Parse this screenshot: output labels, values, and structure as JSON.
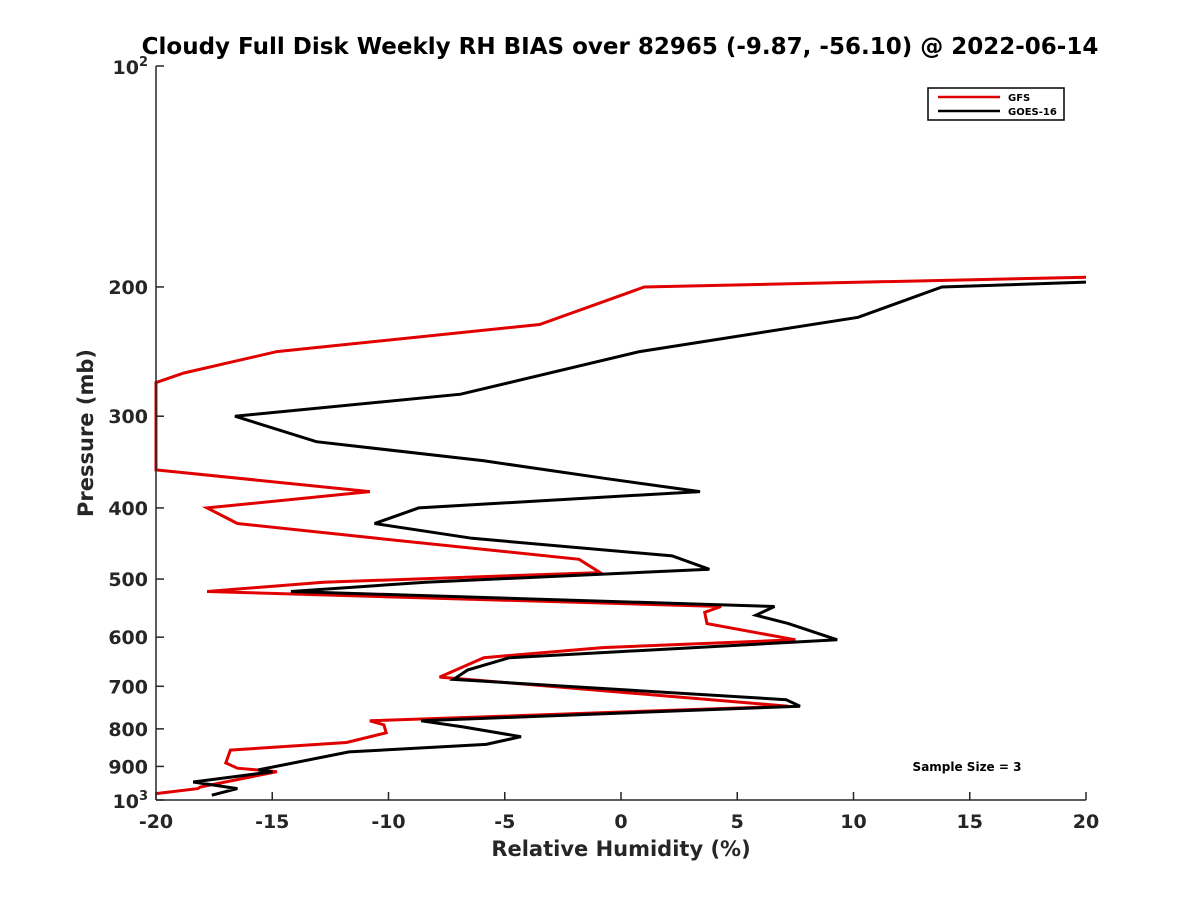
{
  "chart_data": {
    "type": "line",
    "title": "Cloudy Full Disk Weekly RH BIAS over 82965 (-9.87, -56.10) @ 2022-06-14",
    "xlabel": "Relative Humidity (%)",
    "ylabel": "Pressure (mb)",
    "xlim": [
      -20,
      20
    ],
    "ylim": [
      100,
      1000
    ],
    "yscale": "log",
    "y_reversed": true,
    "grid": false,
    "legend_position": "top-right",
    "x_ticks": [
      -20,
      -15,
      -10,
      -5,
      0,
      5,
      10,
      15,
      20
    ],
    "x_tick_labels": [
      "-20",
      "-15",
      "-10",
      "-5",
      "0",
      "5",
      "10",
      "15",
      "20"
    ],
    "y_ticks": [
      200,
      300,
      400,
      500,
      600,
      700,
      800,
      900
    ],
    "y_tick_labels": [
      "200",
      "300",
      "400",
      "500",
      "600",
      "700",
      "800",
      "900"
    ],
    "y_decade_labels": [
      {
        "base": "10",
        "exp": "2",
        "value": 100
      },
      {
        "base": "10",
        "exp": "3",
        "value": 1000
      }
    ],
    "annotation": "Sample Size = 3",
    "series": [
      {
        "name": "GFS",
        "color": "#e00000",
        "points": [
          [
            20.0,
            194
          ],
          [
            1.0,
            200
          ],
          [
            -3.5,
            225
          ],
          [
            -14.8,
            245
          ],
          [
            -18.8,
            262
          ],
          [
            -20.0,
            270
          ],
          [
            -20.0,
            355
          ],
          [
            -10.8,
            380
          ],
          [
            -17.8,
            400
          ],
          [
            -16.5,
            420
          ],
          [
            -10.5,
            440
          ],
          [
            -1.8,
            470
          ],
          [
            -0.9,
            490
          ],
          [
            -12.8,
            505
          ],
          [
            -17.8,
            520
          ],
          [
            4.3,
            545
          ],
          [
            3.6,
            555
          ],
          [
            3.7,
            575
          ],
          [
            7.5,
            605
          ],
          [
            -0.8,
            620
          ],
          [
            -5.9,
            640
          ],
          [
            -7.8,
            680
          ],
          [
            7.2,
            745
          ],
          [
            -10.8,
            780
          ],
          [
            -10.2,
            790
          ],
          [
            -10.1,
            810
          ],
          [
            -11.8,
            835
          ],
          [
            -16.8,
            855
          ],
          [
            -17.0,
            890
          ],
          [
            -16.5,
            905
          ],
          [
            -14.8,
            915
          ],
          [
            -18.1,
            960
          ],
          [
            -18.2,
            965
          ],
          [
            -20.0,
            980
          ]
        ]
      },
      {
        "name": "GOES-16",
        "color": "#000000",
        "points": [
          [
            20.0,
            197
          ],
          [
            13.8,
            200
          ],
          [
            10.2,
            220
          ],
          [
            0.8,
            245
          ],
          [
            -6.9,
            280
          ],
          [
            -16.6,
            300
          ],
          [
            -13.1,
            325
          ],
          [
            -5.9,
            345
          ],
          [
            -0.6,
            365
          ],
          [
            3.4,
            380
          ],
          [
            -8.7,
            400
          ],
          [
            -10.6,
            420
          ],
          [
            -6.4,
            440
          ],
          [
            2.2,
            465
          ],
          [
            3.8,
            485
          ],
          [
            -8.4,
            505
          ],
          [
            -14.2,
            520
          ],
          [
            6.6,
            545
          ],
          [
            5.8,
            560
          ],
          [
            7.2,
            575
          ],
          [
            9.3,
            605
          ],
          [
            -4.8,
            640
          ],
          [
            -6.6,
            665
          ],
          [
            -7.2,
            685
          ],
          [
            7.1,
            730
          ],
          [
            7.7,
            745
          ],
          [
            -8.6,
            780
          ],
          [
            -6.8,
            795
          ],
          [
            -4.3,
            820
          ],
          [
            -5.8,
            840
          ],
          [
            -11.7,
            860
          ],
          [
            -15.6,
            910
          ],
          [
            -15.0,
            915
          ],
          [
            -18.4,
            945
          ],
          [
            -16.5,
            965
          ],
          [
            -17.6,
            985
          ]
        ]
      }
    ]
  }
}
